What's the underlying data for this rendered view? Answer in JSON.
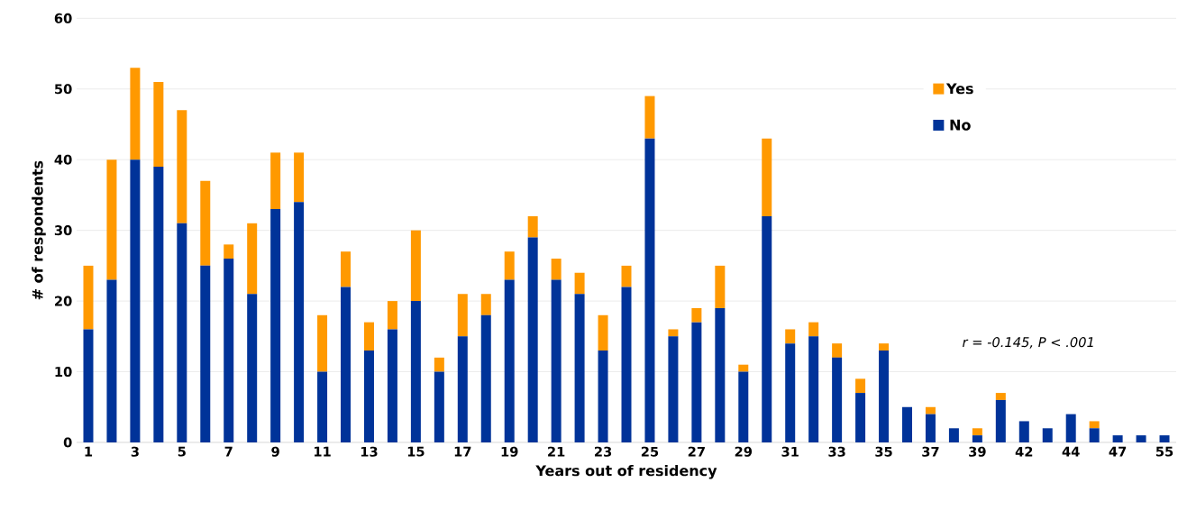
{
  "chart_data": {
    "type": "bar",
    "stacked": true,
    "xlabel": "Years out of residency",
    "ylabel": "# of respondents",
    "categories": [
      "1",
      null,
      "3",
      null,
      "5",
      null,
      "7",
      null,
      "9",
      null,
      "11",
      null,
      "13",
      null,
      "15",
      null,
      "17",
      null,
      "19",
      null,
      "21",
      null,
      "23",
      null,
      "25",
      null,
      "27",
      null,
      "29",
      null,
      "31",
      null,
      "33",
      null,
      "35",
      null,
      "37",
      null,
      "39",
      null,
      "42",
      null,
      "44",
      null,
      "47",
      null,
      "55"
    ],
    "series": [
      {
        "name": "No",
        "color": "#003399",
        "values": [
          16,
          23,
          40,
          39,
          31,
          25,
          26,
          21,
          33,
          34,
          10,
          22,
          13,
          16,
          20,
          10,
          15,
          18,
          23,
          29,
          23,
          21,
          13,
          22,
          43,
          15,
          17,
          19,
          10,
          32,
          14,
          15,
          12,
          7,
          13,
          5,
          4,
          2,
          1,
          6,
          3,
          2,
          4,
          2,
          1,
          1,
          1
        ]
      },
      {
        "name": "Yes",
        "color": "#ff9900",
        "values": [
          9,
          17,
          13,
          12,
          16,
          12,
          2,
          10,
          8,
          7,
          8,
          5,
          4,
          4,
          10,
          2,
          6,
          3,
          4,
          3,
          3,
          3,
          5,
          3,
          6,
          1,
          2,
          6,
          1,
          11,
          2,
          2,
          2,
          2,
          1,
          0,
          1,
          0,
          1,
          1,
          0,
          0,
          0,
          1,
          0,
          0,
          0
        ]
      }
    ],
    "ylim": [
      0,
      60
    ],
    "yticks": [
      0,
      10,
      20,
      30,
      40,
      50,
      60
    ],
    "grid": "y",
    "legend": "top right",
    "annotations": [
      "r = -0.145, P < .001"
    ]
  }
}
